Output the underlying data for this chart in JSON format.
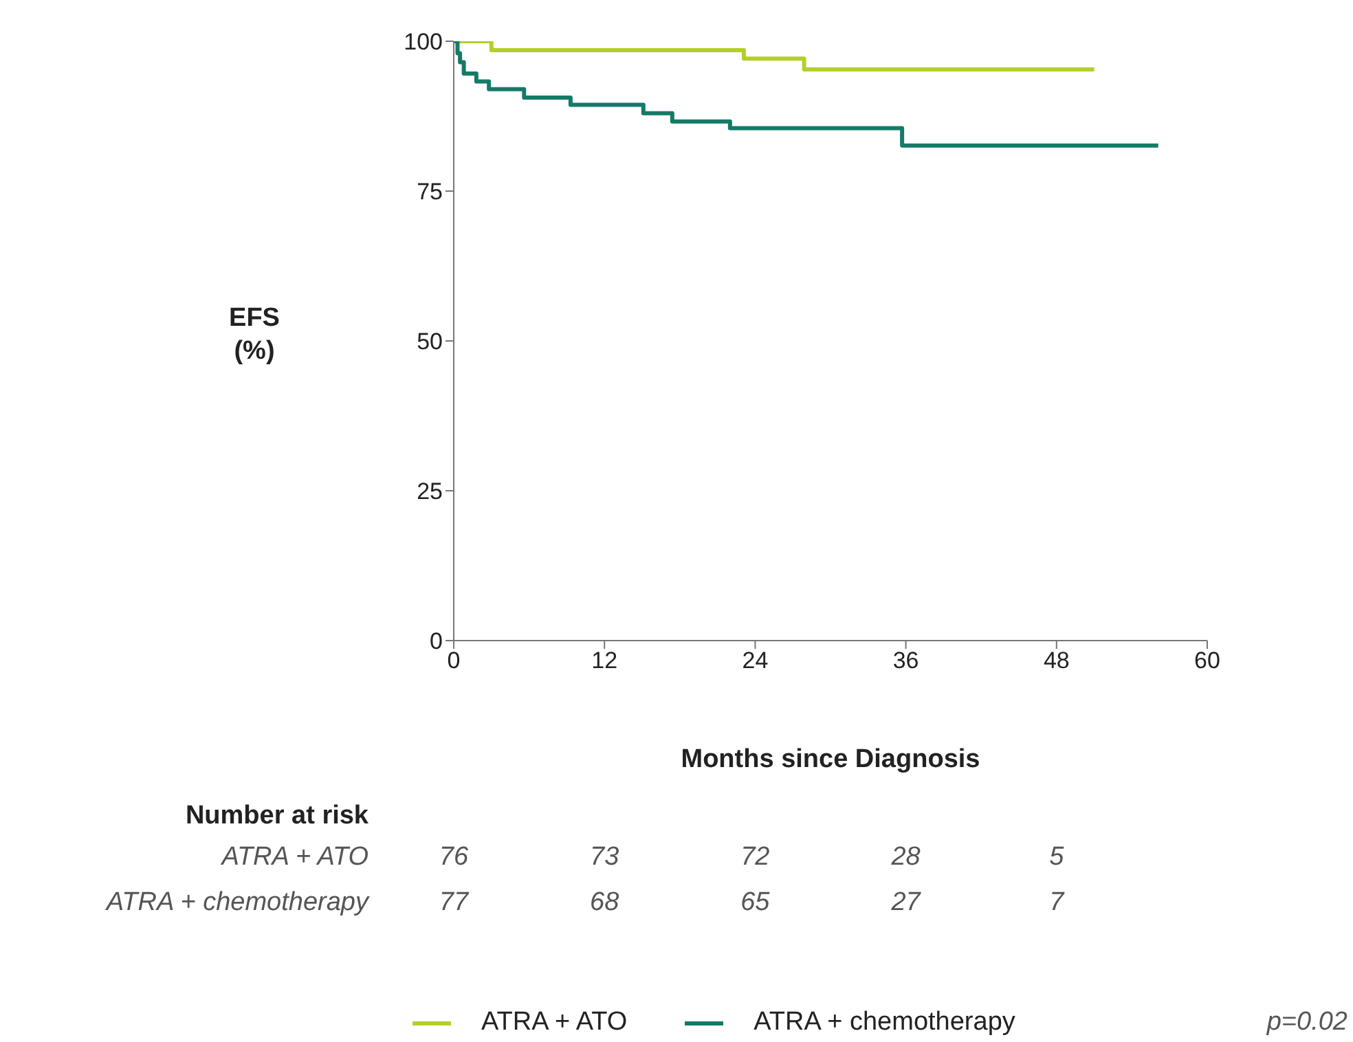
{
  "chart_data": {
    "type": "step",
    "ylabel": "EFS (%)",
    "xlabel": "Months since Diagnosis",
    "xlim": [
      0,
      60
    ],
    "xticks": [
      0,
      12,
      24,
      36,
      48,
      60
    ],
    "ylim": [
      0,
      100
    ],
    "yticks": [
      0,
      25,
      50,
      75,
      100
    ],
    "legend": "bottom",
    "series": [
      {
        "name": "ATRA + ATO",
        "color": "#b5cf2a",
        "x": [
          0,
          3.0,
          23.1,
          27.9,
          51.0
        ],
        "values": [
          100,
          98.5,
          97.1,
          95.3,
          95.3
        ]
      },
      {
        "name": "ATRA + chemotherapy",
        "color": "#157a68",
        "x": [
          0,
          0.3,
          0.5,
          0.8,
          1.8,
          2.8,
          5.6,
          9.3,
          15.1,
          17.4,
          22.0,
          35.7,
          56.1
        ],
        "values": [
          100,
          98,
          96.5,
          94.6,
          93.3,
          92.0,
          90.6,
          89.4,
          88.0,
          86.6,
          85.5,
          82.6,
          82.6
        ]
      }
    ],
    "annotations": [
      "Number at risk",
      "ATRA + ATO",
      "76",
      "73",
      "72",
      "28",
      "5",
      "ATRA + chemotherapy",
      "77",
      "68",
      "65",
      "27",
      "7",
      "p=0.02"
    ]
  }
}
